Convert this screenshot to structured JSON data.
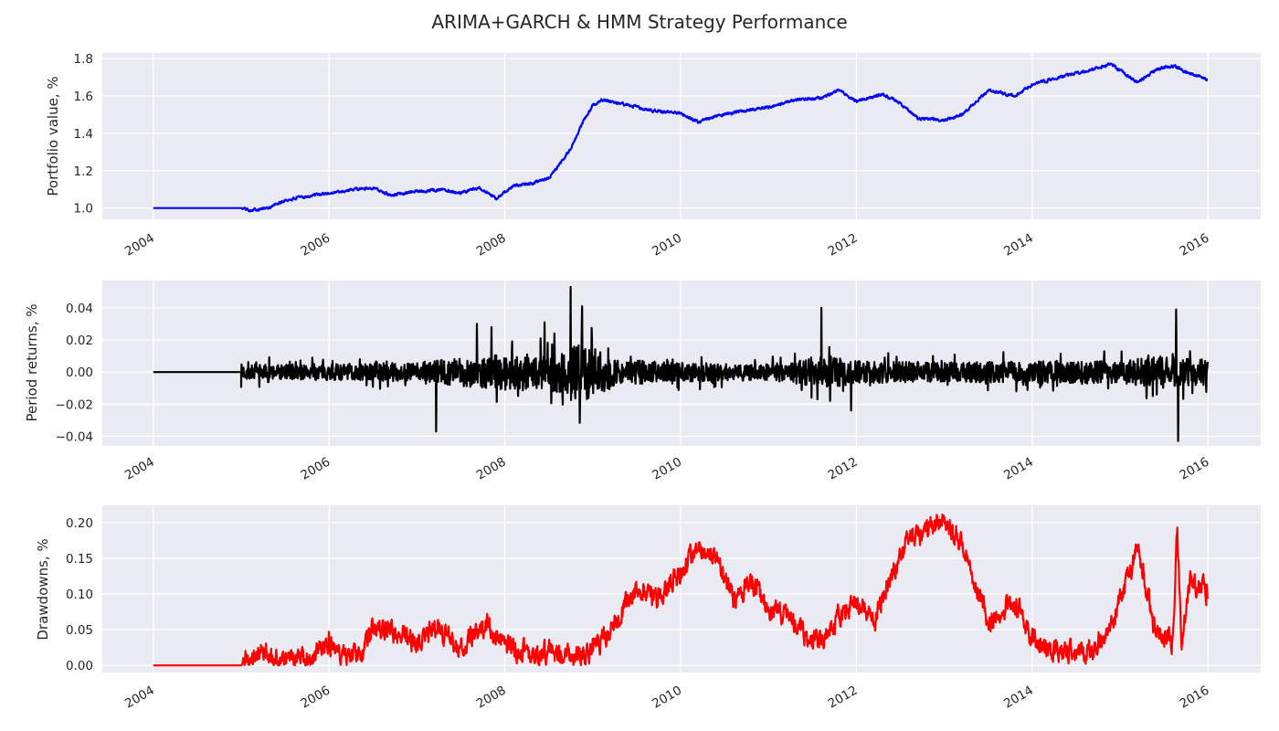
{
  "figure": {
    "title": "ARIMA+GARCH & HMM Strategy Performance",
    "background": "#ffffff",
    "axes_face": "#eaeaf2",
    "grid_color": "#ffffff"
  },
  "chart_data": [
    {
      "type": "line",
      "title": "",
      "ylabel": "Portfolio value, %",
      "xlabel": "",
      "grid": true,
      "color": "#0000ff",
      "xlim": [
        2003.42,
        2016.6
      ],
      "ylim": [
        0.94,
        1.83
      ],
      "xticks": [
        2004,
        2006,
        2008,
        2010,
        2012,
        2014,
        2016
      ],
      "xtick_labels": [
        "2004",
        "2006",
        "2008",
        "2010",
        "2012",
        "2014",
        "2016"
      ],
      "yticks": [
        1.0,
        1.2,
        1.4,
        1.6,
        1.8
      ],
      "ytick_labels": [
        "1.0",
        "1.2",
        "1.4",
        "1.6",
        "1.8"
      ],
      "noise": 0.006,
      "x": [
        2004.0,
        2005.0,
        2005.1,
        2005.3,
        2005.5,
        2005.7,
        2006.0,
        2006.3,
        2006.5,
        2006.7,
        2007.0,
        2007.3,
        2007.5,
        2007.7,
        2007.9,
        2008.1,
        2008.3,
        2008.5,
        2008.65,
        2008.75,
        2008.9,
        2009.0,
        2009.1,
        2009.3,
        2009.5,
        2009.7,
        2010.0,
        2010.2,
        2010.4,
        2010.7,
        2011.0,
        2011.3,
        2011.6,
        2011.8,
        2012.0,
        2012.3,
        2012.5,
        2012.7,
        2013.0,
        2013.2,
        2013.5,
        2013.8,
        2014.0,
        2014.3,
        2014.6,
        2014.9,
        2015.2,
        2015.4,
        2015.6,
        2015.8,
        2016.0
      ],
      "y": [
        1.0,
        1.0,
        0.99,
        1.0,
        1.04,
        1.06,
        1.08,
        1.1,
        1.11,
        1.07,
        1.09,
        1.1,
        1.08,
        1.11,
        1.05,
        1.12,
        1.13,
        1.16,
        1.25,
        1.32,
        1.47,
        1.55,
        1.58,
        1.56,
        1.54,
        1.52,
        1.51,
        1.46,
        1.49,
        1.52,
        1.54,
        1.58,
        1.59,
        1.63,
        1.57,
        1.61,
        1.56,
        1.48,
        1.47,
        1.5,
        1.63,
        1.6,
        1.66,
        1.7,
        1.73,
        1.77,
        1.67,
        1.74,
        1.76,
        1.72,
        1.69
      ]
    },
    {
      "type": "line",
      "title": "",
      "ylabel": "Period returns, %",
      "xlabel": "",
      "grid": true,
      "color": "#000000",
      "xlim": [
        2003.42,
        2016.6
      ],
      "ylim": [
        -0.046,
        0.057
      ],
      "xticks": [
        2004,
        2006,
        2008,
        2010,
        2012,
        2014,
        2016
      ],
      "xtick_labels": [
        "2004",
        "2006",
        "2008",
        "2010",
        "2012",
        "2014",
        "2016"
      ],
      "yticks": [
        -0.04,
        -0.02,
        0.0,
        0.02,
        0.04
      ],
      "ytick_labels": [
        "−0.04",
        "−0.02",
        "0.00",
        "0.02",
        "0.04"
      ],
      "start": 2004.0,
      "active_from": 2005.0,
      "end": 2016.0,
      "volatility_x": [
        2005.0,
        2006.0,
        2007.0,
        2007.5,
        2008.0,
        2008.5,
        2008.9,
        2009.3,
        2010.0,
        2011.0,
        2011.7,
        2012.0,
        2013.0,
        2014.0,
        2015.0,
        2015.5,
        2016.0
      ],
      "volatility": [
        0.005,
        0.005,
        0.006,
        0.009,
        0.011,
        0.012,
        0.018,
        0.008,
        0.006,
        0.005,
        0.01,
        0.007,
        0.006,
        0.007,
        0.007,
        0.01,
        0.008
      ],
      "spikes_x": [
        2007.22,
        2007.68,
        2007.85,
        2008.45,
        2008.75,
        2008.88,
        2011.6,
        2011.7,
        2011.94,
        2015.64,
        2015.66
      ],
      "spikes_y": [
        -0.037,
        0.03,
        0.028,
        0.031,
        0.053,
        0.041,
        0.04,
        -0.018,
        -0.024,
        0.039,
        -0.043
      ]
    },
    {
      "type": "line",
      "title": "",
      "ylabel": "Drawdowns, %",
      "xlabel": "",
      "grid": true,
      "color": "#ff0000",
      "xlim": [
        2003.42,
        2016.6
      ],
      "ylim": [
        -0.01,
        0.224
      ],
      "xticks": [
        2004,
        2006,
        2008,
        2010,
        2012,
        2014,
        2016
      ],
      "xtick_labels": [
        "2004",
        "2006",
        "2008",
        "2010",
        "2012",
        "2014",
        "2016"
      ],
      "yticks": [
        0.0,
        0.05,
        0.1,
        0.15,
        0.2
      ],
      "ytick_labels": [
        "0.00",
        "0.05",
        "0.10",
        "0.15",
        "0.20"
      ],
      "noise": 0.012,
      "x": [
        2004.0,
        2005.0,
        2005.1,
        2005.3,
        2005.5,
        2005.8,
        2006.0,
        2006.2,
        2006.4,
        2006.5,
        2006.8,
        2007.0,
        2007.2,
        2007.5,
        2007.8,
        2008.0,
        2008.3,
        2008.6,
        2008.8,
        2009.0,
        2009.2,
        2009.5,
        2009.7,
        2010.0,
        2010.2,
        2010.4,
        2010.6,
        2010.8,
        2011.0,
        2011.2,
        2011.5,
        2011.7,
        2011.8,
        2012.0,
        2012.2,
        2012.4,
        2012.6,
        2012.8,
        2013.0,
        2013.2,
        2013.5,
        2013.8,
        2014.0,
        2014.2,
        2014.4,
        2014.6,
        2014.8,
        2015.0,
        2015.2,
        2015.4,
        2015.6,
        2015.65,
        2015.7,
        2015.8,
        2016.0
      ],
      "y": [
        0.0,
        0.0,
        0.012,
        0.02,
        0.005,
        0.01,
        0.035,
        0.012,
        0.02,
        0.055,
        0.045,
        0.03,
        0.055,
        0.025,
        0.06,
        0.03,
        0.015,
        0.02,
        0.01,
        0.02,
        0.05,
        0.11,
        0.09,
        0.13,
        0.165,
        0.15,
        0.09,
        0.12,
        0.08,
        0.07,
        0.035,
        0.045,
        0.07,
        0.09,
        0.06,
        0.12,
        0.18,
        0.19,
        0.205,
        0.17,
        0.06,
        0.09,
        0.035,
        0.02,
        0.02,
        0.01,
        0.04,
        0.09,
        0.165,
        0.05,
        0.03,
        0.205,
        0.03,
        0.12,
        0.1
      ]
    }
  ]
}
